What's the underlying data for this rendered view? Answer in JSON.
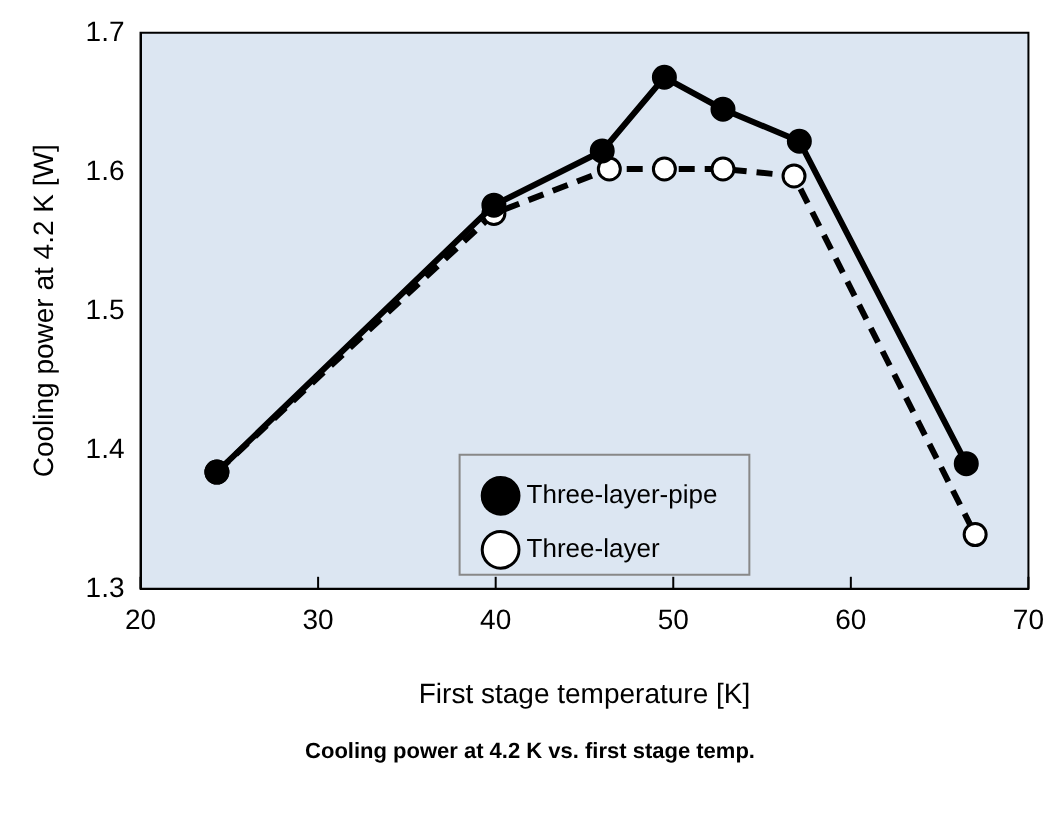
{
  "chart_data": {
    "type": "line",
    "xlabel": "First stage temperature [K]",
    "ylabel": "Cooling power at 4.2 K [W]",
    "annotations": [
      "Cooling power at 4.2 K vs. first stage temp."
    ],
    "xlim": [
      20,
      70
    ],
    "xticks": [
      20,
      30,
      40,
      50,
      60,
      70
    ],
    "ylim": [
      1.3,
      1.7
    ],
    "yticks": [
      1.3,
      1.4,
      1.5,
      1.6,
      1.7
    ],
    "grid": false,
    "legend": "bottom",
    "marker": "circle",
    "series": [
      {
        "name": "Three-layer-pipe",
        "color": "#000000",
        "line_style": "solid",
        "x": [
          24.3,
          39.9,
          46.0,
          49.5,
          52.8,
          57.1,
          66.5
        ],
        "values": [
          1.384,
          1.576,
          1.615,
          1.668,
          1.645,
          1.622,
          1.39
        ]
      },
      {
        "name": "Three-layer",
        "color": "#000000",
        "line_style": "dashed",
        "x": [
          24.3,
          39.9,
          46.4,
          49.5,
          52.8,
          56.8,
          67.0
        ],
        "values": [
          1.384,
          1.57,
          1.602,
          1.602,
          1.602,
          1.597,
          1.339
        ]
      }
    ]
  }
}
